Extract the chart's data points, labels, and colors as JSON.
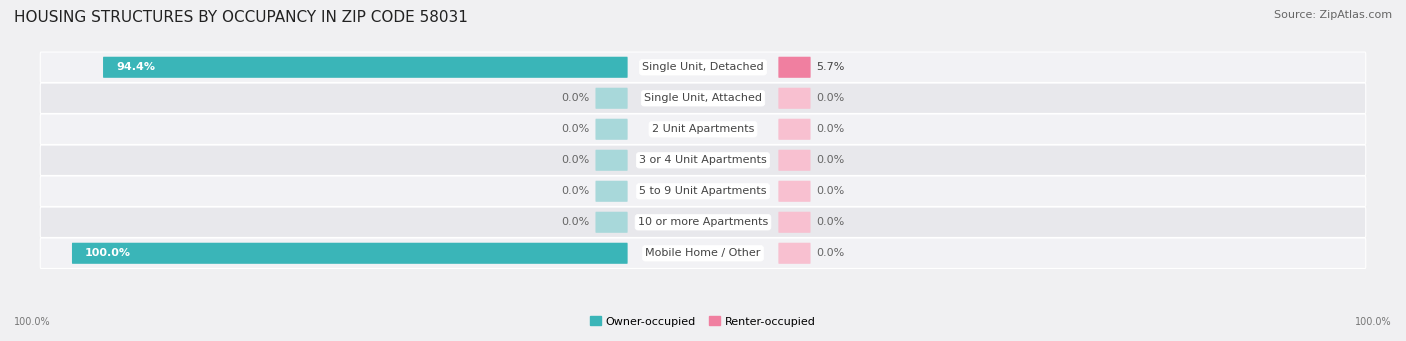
{
  "title": "HOUSING STRUCTURES BY OCCUPANCY IN ZIP CODE 58031",
  "source": "Source: ZipAtlas.com",
  "categories": [
    "Single Unit, Detached",
    "Single Unit, Attached",
    "2 Unit Apartments",
    "3 or 4 Unit Apartments",
    "5 to 9 Unit Apartments",
    "10 or more Apartments",
    "Mobile Home / Other"
  ],
  "owner_values": [
    94.4,
    0.0,
    0.0,
    0.0,
    0.0,
    0.0,
    100.0
  ],
  "renter_values": [
    5.7,
    0.0,
    0.0,
    0.0,
    0.0,
    0.0,
    0.0
  ],
  "owner_color": "#3ab5b8",
  "renter_color": "#f07fa0",
  "owner_color_light": "#a8d8da",
  "renter_color_light": "#f8c0d0",
  "bg_color": "#f0f0f2",
  "row_bg_odd": "#e8e8ec",
  "row_bg_even": "#f2f2f5",
  "title_fontsize": 11,
  "label_fontsize": 8,
  "source_fontsize": 8,
  "bar_height": 0.58,
  "min_stub_owner": 5.0,
  "min_stub_renter": 5.0,
  "xlim": 100.0
}
